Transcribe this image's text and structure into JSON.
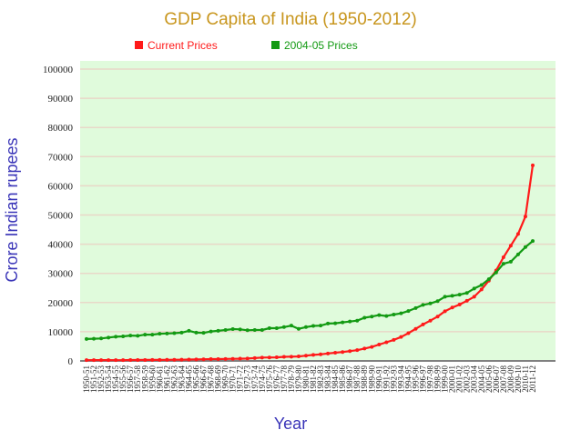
{
  "chart_data": {
    "type": "line",
    "title": "GDP Capita of India (1950-2012)",
    "xlabel": "Year",
    "ylabel": "Crore Indian rupees",
    "ylim": [
      0,
      100000
    ],
    "yticks": [
      0,
      10000,
      20000,
      30000,
      40000,
      50000,
      60000,
      70000,
      80000,
      90000,
      100000
    ],
    "ytick_labels": [
      "0",
      "10000",
      "20000",
      "30000",
      "40000",
      "50000",
      "60000",
      "70000",
      "80000",
      "90000",
      "100000"
    ],
    "grid": true,
    "legend_position": "top",
    "colors": {
      "plot_bg": "#e0fbdc",
      "grid": "#e8d8c8",
      "axis": "#808080"
    },
    "categories": [
      "1950-51",
      "1951-52",
      "1952-53",
      "1953-54",
      "1954-55",
      "1955-56",
      "1956-57",
      "1957-58",
      "1958-59",
      "1959-60",
      "1960-61",
      "1961-62",
      "1962-63",
      "1963-64",
      "1964-65",
      "1965-66",
      "1966-67",
      "1967-68",
      "1968-69",
      "1969-70",
      "1970-71",
      "1971-72",
      "1972-73",
      "1973-74",
      "1974-75",
      "1975-76",
      "1976-77",
      "1977-78",
      "1978-79",
      "1979-80",
      "1980-81",
      "1981-82",
      "1982-83",
      "1983-84",
      "1984-85",
      "1985-86",
      "1986-87",
      "1987-88",
      "1988-89",
      "1989-90",
      "1990-91",
      "1991-92",
      "1992-93",
      "1993-94",
      "1994-95",
      "1995-96",
      "1996-97",
      "1997-98",
      "1998-99",
      "1999-00",
      "2000-01",
      "2001-02",
      "2002-03",
      "2003-04",
      "2004-05",
      "2005-06",
      "2006-07",
      "2007-08",
      "2008-09",
      "2009-10",
      "2010-11",
      "2011-12"
    ],
    "series": [
      {
        "name": "Current Prices",
        "color": "#ff1a1a",
        "values": [
          260,
          270,
          265,
          280,
          260,
          260,
          300,
          305,
          330,
          340,
          350,
          370,
          390,
          420,
          480,
          500,
          550,
          610,
          630,
          680,
          720,
          760,
          820,
          960,
          1140,
          1170,
          1230,
          1390,
          1450,
          1540,
          1800,
          2050,
          2250,
          2550,
          2800,
          3050,
          3350,
          3680,
          4250,
          4800,
          5600,
          6400,
          7200,
          8200,
          9500,
          11000,
          12500,
          13800,
          15200,
          17000,
          18300,
          19300,
          20600,
          22000,
          24500,
          27500,
          31000,
          35500,
          39500,
          43500,
          49500,
          67000
        ],
        "_note": ""
      },
      {
        "name": "2004-05 Prices",
        "color": "#139a13",
        "values": [
          7500,
          7600,
          7700,
          8000,
          8300,
          8400,
          8700,
          8600,
          9000,
          9000,
          9300,
          9400,
          9500,
          9700,
          10300,
          9700,
          9600,
          10100,
          10300,
          10600,
          10900,
          10800,
          10500,
          10600,
          10600,
          11200,
          11200,
          11600,
          12100,
          11000,
          11600,
          12000,
          12100,
          12800,
          12900,
          13200,
          13500,
          13800,
          14800,
          15200,
          15700,
          15400,
          15900,
          16300,
          17100,
          18100,
          19200,
          19700,
          20500,
          22000,
          22300,
          22700,
          23300,
          24800,
          26000,
          28000,
          30300,
          33300,
          34000,
          36500,
          39000,
          41100
        ]
      }
    ]
  }
}
